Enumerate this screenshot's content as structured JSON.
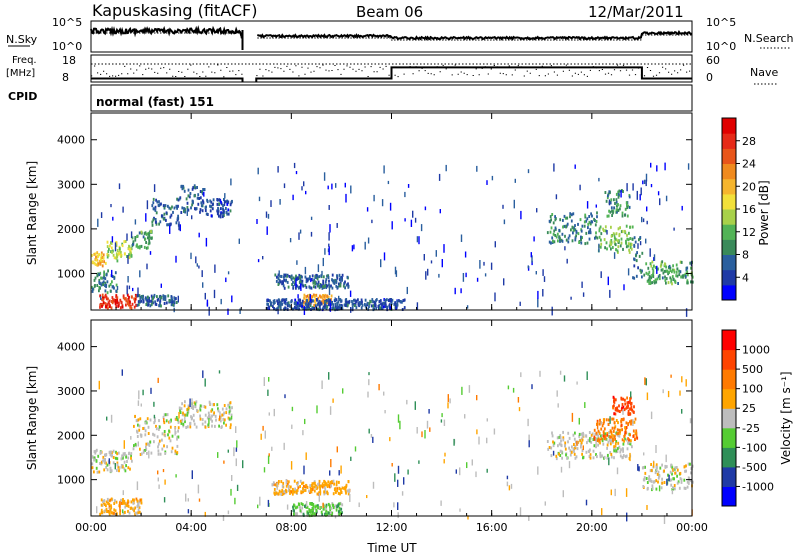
{
  "header": {
    "station": "Kapuskasing (fitACF)",
    "beam": "Beam 06",
    "date": "12/Mar/2011"
  },
  "noise_panel": {
    "left_label": "N.Sky",
    "right_label": "N.Search",
    "left_ticks": [
      "10^5",
      "10^0"
    ],
    "right_ticks": [
      "10^5",
      "10^0"
    ]
  },
  "freq_panel": {
    "left_label_1": "Freq.",
    "left_label_2": "[MHz]",
    "left_ticks": [
      "18",
      "8"
    ],
    "right_ticks": [
      "60",
      "0"
    ],
    "right_label": "Nave"
  },
  "cpid": {
    "label": "CPID",
    "text": "normal (fast) 151"
  },
  "chart_data": [
    {
      "type": "heatmap",
      "panel": "power",
      "ylabel": "Slant Range [km]",
      "xlabel": "",
      "x_ticks": [
        "00:00",
        "04:00",
        "08:00",
        "12:00",
        "16:00",
        "20:00",
        "00:00"
      ],
      "y_ticks": [
        1000,
        2000,
        3000,
        4000
      ],
      "ylim": [
        180,
        4600
      ],
      "xlim_hours": [
        0,
        24
      ],
      "colorbar": {
        "label": "Power [dB]",
        "ticks": [
          "28",
          "24",
          "20",
          "16",
          "12",
          "8",
          "4"
        ],
        "colors": [
          "#0000ff",
          "#1f3aa6",
          "#2a5f9e",
          "#3a8a5a",
          "#52b356",
          "#a8d14a",
          "#f2e03a",
          "#f5b52e",
          "#f08a1e",
          "#e8551a",
          "#e62a18",
          "#e00000"
        ],
        "range": [
          0,
          30
        ]
      },
      "echo_regions": [
        {
          "t0": 0.0,
          "t1": 0.6,
          "r0": 1200,
          "r1": 1500,
          "level": 18
        },
        {
          "t0": 0.6,
          "t1": 1.6,
          "r0": 1300,
          "r1": 1750,
          "level": 14
        },
        {
          "t0": 1.6,
          "t1": 2.4,
          "r0": 1600,
          "r1": 2000,
          "level": 10
        },
        {
          "t0": 2.4,
          "t1": 3.5,
          "r0": 2100,
          "r1": 2700,
          "level": 6
        },
        {
          "t0": 3.5,
          "t1": 4.5,
          "r0": 2400,
          "r1": 3000,
          "level": 6
        },
        {
          "t0": 4.5,
          "t1": 5.6,
          "r0": 2300,
          "r1": 2700,
          "level": 5
        },
        {
          "t0": 0.3,
          "t1": 1.8,
          "r0": 250,
          "r1": 550,
          "level": 26
        },
        {
          "t0": 1.8,
          "t1": 3.4,
          "r0": 300,
          "r1": 550,
          "level": 6
        },
        {
          "t0": 0.0,
          "t1": 1.0,
          "r0": 600,
          "r1": 1100,
          "level": 8
        },
        {
          "t0": 7.3,
          "t1": 10.3,
          "r0": 700,
          "r1": 1000,
          "level": 6
        },
        {
          "t0": 8.4,
          "t1": 9.6,
          "r0": 300,
          "r1": 550,
          "level": 20
        },
        {
          "t0": 7.0,
          "t1": 12.5,
          "r0": 220,
          "r1": 450,
          "level": 5
        },
        {
          "t0": 18.2,
          "t1": 20.2,
          "r0": 1700,
          "r1": 2400,
          "level": 8
        },
        {
          "t0": 20.2,
          "t1": 21.6,
          "r0": 1500,
          "r1": 2100,
          "level": 12
        },
        {
          "t0": 20.5,
          "t1": 21.5,
          "r0": 2300,
          "r1": 2900,
          "level": 9
        },
        {
          "t0": 21.6,
          "t1": 22.0,
          "r0": 900,
          "r1": 1900,
          "level": 7
        },
        {
          "t0": 22.0,
          "t1": 24.0,
          "r0": 800,
          "r1": 1300,
          "level": 10
        }
      ]
    },
    {
      "type": "heatmap",
      "panel": "velocity",
      "ylabel": "Slant Range [km]",
      "xlabel": "Time UT",
      "x_ticks": [
        "00:00",
        "04:00",
        "08:00",
        "12:00",
        "16:00",
        "20:00",
        "00:00"
      ],
      "y_ticks": [
        1000,
        2000,
        3000,
        4000
      ],
      "ylim": [
        180,
        4600
      ],
      "xlim_hours": [
        0,
        24
      ],
      "colorbar": {
        "label": "Velocity [m s⁻¹]",
        "ticks": [
          "1000",
          "500",
          "100",
          "25",
          "-25",
          "-100",
          "-500",
          "-1000"
        ],
        "colors": [
          "#ff0000",
          "#ff4400",
          "#ff7a00",
          "#ffa500",
          "#bdbdbd",
          "#55cc33",
          "#2f8f58",
          "#1f3aa6",
          "#0000ff"
        ]
      },
      "echo_regions": [
        {
          "t0": 0.0,
          "t1": 1.6,
          "r0": 1200,
          "r1": 1700,
          "level": 4
        },
        {
          "t0": 1.6,
          "t1": 3.5,
          "r0": 1600,
          "r1": 2500,
          "level": 4
        },
        {
          "t0": 3.5,
          "t1": 5.6,
          "r0": 2200,
          "r1": 2800,
          "level": 4
        },
        {
          "t0": 0.3,
          "t1": 2.0,
          "r0": 250,
          "r1": 600,
          "level": 3
        },
        {
          "t0": 7.2,
          "t1": 10.3,
          "r0": 700,
          "r1": 1000,
          "level": 3
        },
        {
          "t0": 8.0,
          "t1": 10.0,
          "r0": 220,
          "r1": 500,
          "level": 5
        },
        {
          "t0": 18.2,
          "t1": 21.6,
          "r0": 1500,
          "r1": 2100,
          "level": 4
        },
        {
          "t0": 20.0,
          "t1": 21.8,
          "r0": 1900,
          "r1": 2400,
          "level": 2
        },
        {
          "t0": 20.8,
          "t1": 21.7,
          "r0": 2500,
          "r1": 2900,
          "level": 1
        },
        {
          "t0": 22.0,
          "t1": 24.0,
          "r0": 800,
          "r1": 1400,
          "level": 4
        }
      ]
    }
  ]
}
